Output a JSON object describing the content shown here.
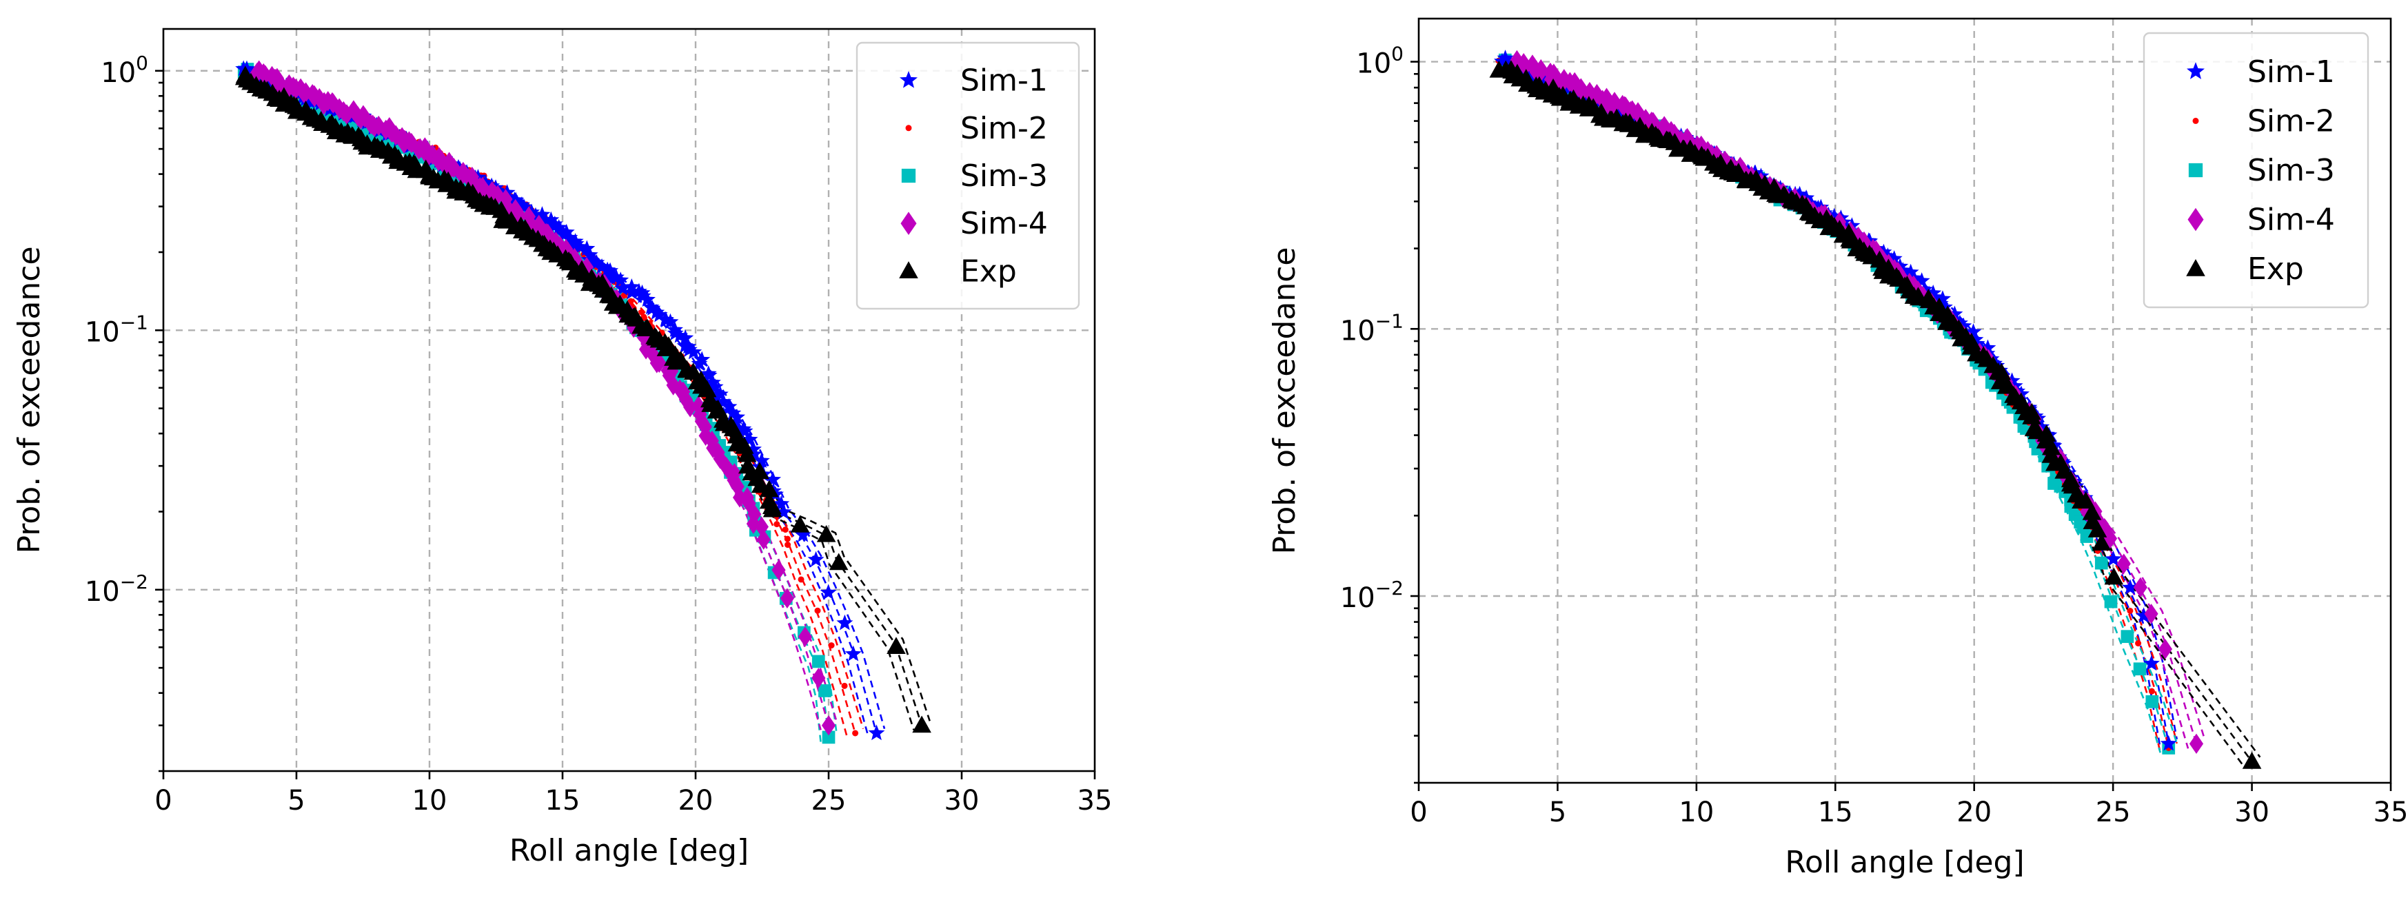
{
  "colors": {
    "Sim-1": "#0000ff",
    "Sim-2": "#ff0000",
    "Sim-3": "#00bfbf",
    "Sim-4": "#bf00bf",
    "Exp": "#000000"
  },
  "chart_data": [
    {
      "type": "scatter",
      "title": "",
      "xlabel": "Roll angle [deg]",
      "ylabel": "Prob. of exceedance",
      "xscale": "linear",
      "yscale": "log",
      "xlim": [
        0,
        35
      ],
      "ylim": [
        0.002,
        1.45
      ],
      "grid": true,
      "legend_position": "top-right",
      "x_ticks": [
        {
          "value": 0,
          "label": "0"
        },
        {
          "value": 5,
          "label": "5"
        },
        {
          "value": 10,
          "label": "10"
        },
        {
          "value": 15,
          "label": "15"
        },
        {
          "value": 20,
          "label": "20"
        },
        {
          "value": 25,
          "label": "25"
        },
        {
          "value": 30,
          "label": "30"
        },
        {
          "value": 35,
          "label": "35"
        }
      ],
      "y_ticks": [
        {
          "value": 1,
          "base": "10",
          "exp": "0"
        },
        {
          "value": 0.1,
          "base": "10",
          "exp": "−1"
        },
        {
          "value": 0.01,
          "base": "10",
          "exp": "−2"
        }
      ],
      "series": [
        {
          "name": "Sim-1",
          "marker": "star",
          "x": [
            3,
            5,
            7.5,
            10,
            12.5,
            15,
            17,
            18.5,
            20,
            21,
            22,
            22.8,
            23.3,
            24,
            24.5,
            25,
            25.5,
            26,
            26.8
          ],
          "y": [
            1,
            0.82,
            0.65,
            0.48,
            0.35,
            0.24,
            0.16,
            0.12,
            0.08,
            0.055,
            0.038,
            0.026,
            0.02,
            0.016,
            0.013,
            0.01,
            0.0075,
            0.0055,
            0.0028
          ]
        },
        {
          "name": "Sim-2",
          "marker": "dot",
          "x": [
            3,
            5,
            7.5,
            10,
            12.5,
            15,
            17,
            18.5,
            20,
            21,
            22,
            22.8,
            23.5,
            24,
            24.5,
            25,
            25.5,
            26
          ],
          "y": [
            1,
            0.83,
            0.66,
            0.5,
            0.36,
            0.24,
            0.15,
            0.1,
            0.065,
            0.045,
            0.03,
            0.021,
            0.015,
            0.011,
            0.0085,
            0.0062,
            0.0042,
            0.0028
          ]
        },
        {
          "name": "Sim-3",
          "marker": "square",
          "x": [
            3,
            5,
            7.5,
            10,
            12.5,
            15,
            17,
            18.5,
            20,
            21,
            22,
            22.5,
            23,
            23.5,
            24,
            24.5,
            24.8,
            25
          ],
          "y": [
            1,
            0.78,
            0.6,
            0.45,
            0.32,
            0.21,
            0.13,
            0.085,
            0.052,
            0.034,
            0.022,
            0.016,
            0.012,
            0.009,
            0.0068,
            0.0052,
            0.004,
            0.0027
          ]
        },
        {
          "name": "Sim-4",
          "marker": "diamond",
          "x": [
            3.5,
            5,
            7.5,
            10,
            12.5,
            15,
            17,
            18.5,
            20,
            21,
            22,
            22.5,
            23,
            23.5,
            24,
            24.5,
            25
          ],
          "y": [
            1,
            0.85,
            0.66,
            0.48,
            0.33,
            0.21,
            0.13,
            0.08,
            0.05,
            0.032,
            0.021,
            0.016,
            0.012,
            0.009,
            0.0065,
            0.0045,
            0.003
          ]
        },
        {
          "name": "Exp",
          "marker": "triangle",
          "x": [
            3,
            5,
            7.5,
            10,
            12.5,
            15,
            16,
            17,
            18,
            19,
            20,
            20.5,
            21,
            21.5,
            22,
            22.3,
            23,
            24,
            25,
            25.3,
            27.5,
            28.5
          ],
          "y": [
            0.95,
            0.72,
            0.53,
            0.4,
            0.29,
            0.19,
            0.16,
            0.13,
            0.105,
            0.085,
            0.065,
            0.055,
            0.045,
            0.04,
            0.03,
            0.028,
            0.02,
            0.018,
            0.016,
            0.013,
            0.0062,
            0.003
          ]
        }
      ]
    },
    {
      "type": "scatter",
      "title": "",
      "xlabel": "Roll angle [deg]",
      "ylabel": "Prob. of exceedance",
      "xscale": "linear",
      "yscale": "log",
      "xlim": [
        0,
        35
      ],
      "ylim": [
        0.002,
        1.45
      ],
      "grid": true,
      "legend_position": "top-right",
      "x_ticks": [
        {
          "value": 0,
          "label": "0"
        },
        {
          "value": 5,
          "label": "5"
        },
        {
          "value": 10,
          "label": "10"
        },
        {
          "value": 15,
          "label": "15"
        },
        {
          "value": 20,
          "label": "20"
        },
        {
          "value": 25,
          "label": "25"
        },
        {
          "value": 30,
          "label": "30"
        },
        {
          "value": 35,
          "label": "35"
        }
      ],
      "y_ticks": [
        {
          "value": 1,
          "base": "10",
          "exp": "0"
        },
        {
          "value": 0.1,
          "base": "10",
          "exp": "−1"
        },
        {
          "value": 0.01,
          "base": "10",
          "exp": "−2"
        }
      ],
      "series": [
        {
          "name": "Sim-1",
          "marker": "star",
          "x": [
            3,
            5,
            7.5,
            10,
            12.5,
            15,
            17,
            19,
            20.5,
            22,
            23,
            24,
            24.5,
            25,
            25.5,
            26,
            26.5,
            27
          ],
          "y": [
            1,
            0.82,
            0.64,
            0.48,
            0.36,
            0.26,
            0.18,
            0.12,
            0.08,
            0.05,
            0.034,
            0.023,
            0.018,
            0.014,
            0.011,
            0.0085,
            0.0055,
            0.0028
          ]
        },
        {
          "name": "Sim-2",
          "marker": "dot",
          "x": [
            3,
            5,
            7.5,
            10,
            12.5,
            15,
            17,
            19,
            20.5,
            22,
            23,
            24,
            24.5,
            25,
            25.5,
            26,
            26.5,
            27
          ],
          "y": [
            1,
            0.82,
            0.64,
            0.48,
            0.35,
            0.25,
            0.17,
            0.11,
            0.075,
            0.045,
            0.03,
            0.02,
            0.015,
            0.012,
            0.009,
            0.0065,
            0.0045,
            0.0027
          ]
        },
        {
          "name": "Sim-3",
          "marker": "square",
          "x": [
            3,
            5,
            7.5,
            10,
            12.5,
            15,
            17,
            19,
            20.5,
            22,
            23,
            24,
            24.5,
            25,
            25.5,
            26,
            26.5,
            27
          ],
          "y": [
            1,
            0.81,
            0.63,
            0.47,
            0.34,
            0.24,
            0.16,
            0.105,
            0.07,
            0.042,
            0.027,
            0.017,
            0.013,
            0.0095,
            0.007,
            0.0053,
            0.004,
            0.0027
          ]
        },
        {
          "name": "Sim-4",
          "marker": "diamond",
          "x": [
            3.5,
            5,
            7.5,
            10,
            12.5,
            15,
            17,
            19,
            20.5,
            22,
            23,
            24,
            25,
            25.5,
            26,
            26.5,
            27,
            28
          ],
          "y": [
            1,
            0.86,
            0.66,
            0.48,
            0.35,
            0.25,
            0.17,
            0.11,
            0.075,
            0.047,
            0.032,
            0.022,
            0.016,
            0.013,
            0.0105,
            0.0085,
            0.0062,
            0.0028
          ]
        },
        {
          "name": "Exp",
          "marker": "triangle",
          "x": [
            3,
            5,
            7.5,
            10,
            12.5,
            15,
            17,
            19,
            20.5,
            22,
            23,
            24,
            24.5,
            25,
            30
          ],
          "y": [
            0.95,
            0.75,
            0.58,
            0.45,
            0.34,
            0.24,
            0.16,
            0.11,
            0.075,
            0.048,
            0.032,
            0.022,
            0.016,
            0.012,
            0.0024
          ]
        }
      ]
    }
  ],
  "legend": {
    "items": [
      {
        "name": "Sim-1",
        "label": "Sim-1",
        "marker": "star"
      },
      {
        "name": "Sim-2",
        "label": "Sim-2",
        "marker": "dot"
      },
      {
        "name": "Sim-3",
        "label": "Sim-3",
        "marker": "square"
      },
      {
        "name": "Sim-4",
        "label": "Sim-4",
        "marker": "diamond"
      },
      {
        "name": "Exp",
        "label": "Exp",
        "marker": "triangle"
      }
    ]
  }
}
